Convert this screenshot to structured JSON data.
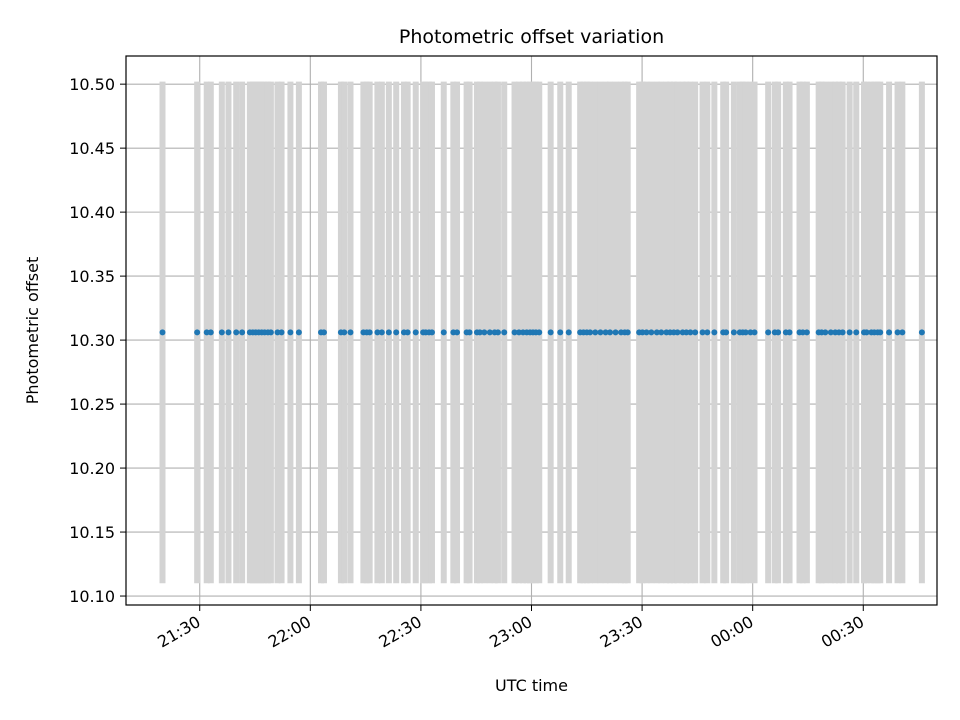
{
  "chart_data": {
    "type": "scatter",
    "title": "Photometric offset variation",
    "xlabel": "UTC time",
    "ylabel": "Photometric offset",
    "x_axis": "time",
    "x_ticks": [
      "21:30",
      "22:00",
      "22:30",
      "23:00",
      "23:30",
      "00:00",
      "00:30"
    ],
    "x_tick_minutes": [
      0,
      30,
      60,
      90,
      120,
      150,
      180
    ],
    "xlim_minutes": [
      -20,
      200
    ],
    "y_ticks": [
      "10.10",
      "10.15",
      "10.20",
      "10.25",
      "10.30",
      "10.35",
      "10.40",
      "10.45",
      "10.50"
    ],
    "ylim": [
      10.093,
      10.522
    ],
    "grid": true,
    "colors": {
      "points": "#1f77b4",
      "error_bars": "#d3d3d3",
      "grid": "#b0b0b0",
      "axes": "#000000"
    },
    "series": [
      {
        "y": 10.306,
        "yerr_low": 10.11,
        "yerr_high": 10.502,
        "x_minutes": [
          -10.1,
          -0.7,
          1.9,
          3.0,
          6.0,
          7.8,
          9.9,
          11.5,
          13.6,
          14.4,
          15.2,
          16.0,
          16.8,
          17.6,
          18.5,
          19.3,
          21.1,
          22.2,
          24.6,
          26.9,
          32.9,
          33.7,
          38.3,
          39.2,
          40.9,
          44.4,
          45.3,
          46.1,
          48.2,
          49.4,
          51.3,
          53.3,
          55.4,
          56.4,
          58.6,
          60.6,
          61.3,
          62.2,
          63.0,
          66.2,
          68.8,
          69.8,
          72.4,
          73.2,
          75.2,
          76.0,
          77.2,
          78.7,
          80.0,
          80.9,
          82.6,
          85.4,
          86.6,
          87.7,
          88.7,
          89.6,
          90.4,
          91.2,
          92.1,
          95.2,
          97.8,
          100.1,
          103.2,
          104.1,
          105.0,
          105.9,
          107.3,
          108.7,
          110.1,
          111.3,
          112.8,
          114.3,
          115.3,
          116.1,
          119.2,
          120.1,
          121.2,
          122.5,
          124.0,
          125.2,
          126.6,
          127.6,
          128.6,
          129.6,
          131.0,
          132.0,
          133.1,
          134.4,
          136.4,
          137.7,
          139.6,
          142.0,
          142.8,
          144.9,
          146.5,
          147.3,
          148.1,
          149.4,
          150.5,
          154.2,
          156.0,
          156.9,
          159.0,
          160.0,
          162.7,
          163.6,
          164.7,
          167.9,
          168.7,
          169.7,
          171.2,
          172.4,
          173.4,
          174.4,
          176.3,
          178.1,
          180.2,
          180.9,
          182.2,
          183.0,
          183.9,
          184.6,
          187.0,
          189.3,
          190.6,
          195.9
        ]
      }
    ]
  }
}
